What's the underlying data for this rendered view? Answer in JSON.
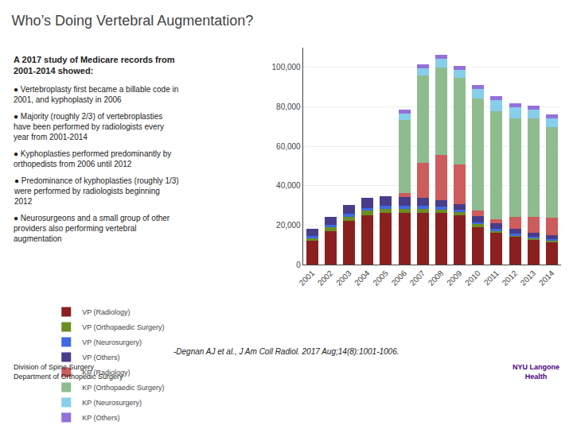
{
  "chart_data": {
    "type": "bar",
    "stacked": true,
    "title": "Who’s Doing Vertebral Augmentation?",
    "subtitle": "A 2017 study of Medicare records from\n2001-2014 showed:",
    "annotations": [
      "● Vertebroplasty first became a billable code in\n2001, and kyphoplasty in 2006",
      "● Majority (roughly 2/3) of vertebroplasties\nhave been performed by radiologists every\nyear from 2001-2014",
      "● Kyphoplasties performed predominantly by\northopedists from 2006 until 2012",
      "● Predominance of kyphoplasties (roughly 1/3)\nwere performed by radiologists beginning\n2012",
      "● Neurosurgeons and a small group of other\nproviders also performing vertebral\naugmentation",
      "-Degnan AJ et al., J Am Coll Radiol. 2017 Aug;14(8):1001-1006.",
      "Division of Spine Surgery\nDepartment of Orthopedic Surgery",
      "NYU Langone\nHealth"
    ],
    "categories": [
      "2001",
      "2002",
      "2003",
      "2004",
      "2005",
      "2006",
      "2007",
      "2008",
      "2009",
      "2010",
      "2011",
      "2012",
      "2013",
      "2014"
    ],
    "series": [
      {
        "name": "VP (Radiology)",
        "color": "#8B2020",
        "values": [
          12000,
          17000,
          22000,
          25000,
          26000,
          26000,
          26000,
          26000,
          25000,
          19000,
          16000,
          14000,
          12500,
          11500
        ]
      },
      {
        "name": "VP (Orthopaedic Surgery)",
        "color": "#6B8E23",
        "values": [
          1500,
          2000,
          2200,
          2200,
          2200,
          2200,
          2200,
          1800,
          1600,
          1400,
          1100,
          900,
          800,
          700
        ]
      },
      {
        "name": "VP (Neurosurgery)",
        "color": "#4169E1",
        "values": [
          1000,
          1200,
          1500,
          1500,
          1500,
          1500,
          1500,
          1500,
          1200,
          1000,
          900,
          800,
          700,
          600
        ]
      },
      {
        "name": "VP (Others)",
        "color": "#483D8B",
        "values": [
          3500,
          4000,
          4500,
          5000,
          5000,
          4500,
          4000,
          3500,
          3000,
          3000,
          2800,
          2500,
          2200,
          2000
        ]
      },
      {
        "name": "KP (Radiology)",
        "color": "#CD5C5C",
        "values": [
          0,
          0,
          0,
          0,
          0,
          2000,
          18000,
          23000,
          20000,
          3000,
          2000,
          6000,
          8000,
          9000
        ]
      },
      {
        "name": "KP (Orthopaedic Surgery)",
        "color": "#8FBC8F",
        "values": [
          0,
          0,
          0,
          0,
          0,
          37000,
          44000,
          44000,
          44000,
          57000,
          55000,
          50000,
          50000,
          46000
        ]
      },
      {
        "name": "KP (Neurosurgery)",
        "color": "#87CEEB",
        "values": [
          0,
          0,
          0,
          0,
          0,
          3500,
          4000,
          4500,
          4000,
          4500,
          5500,
          5500,
          4500,
          4500
        ]
      },
      {
        "name": "KP (Others)",
        "color": "#9370DB",
        "values": [
          0,
          0,
          0,
          0,
          0,
          2000,
          2000,
          2000,
          2000,
          2000,
          2000,
          2000,
          2000,
          1700
        ]
      }
    ],
    "ylim": [
      0,
      110000
    ],
    "yticks": [
      0,
      {
        "value": 20000,
        "label": "20,000"
      },
      {
        "value": 40000,
        "label": "40,000"
      },
      {
        "value": 60000,
        "label": "60,000"
      },
      {
        "value": 80000,
        "label": "80,000"
      },
      {
        "value": 100000,
        "label": "100,000"
      }
    ],
    "grid": true,
    "legend": "bottom"
  }
}
